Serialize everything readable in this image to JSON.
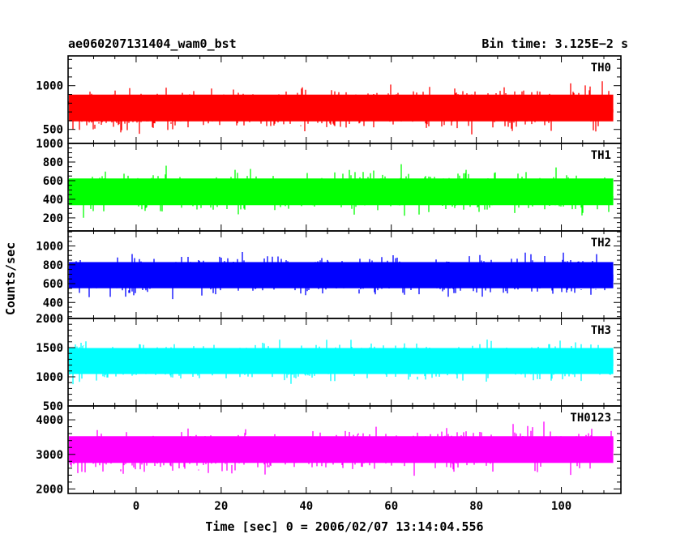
{
  "header": {
    "left_title": "ae060207131404_wam0_bst",
    "right_title": "Bin time: 3.125E−2 s"
  },
  "chart_data": {
    "type": "line",
    "title": "ae060207131404_wam0_bst",
    "subtitle": "Bin time: 3.125E−2 s",
    "xlabel": "Time [sec] 0 = 2006/02/07 13:14:04.556",
    "ylabel": "Counts/sec",
    "xlim": [
      -16,
      114
    ],
    "x_ticks": [
      0,
      20,
      40,
      60,
      80,
      100
    ],
    "x_tick_labels": [
      "0",
      "20",
      "40",
      "60",
      "80",
      "100"
    ],
    "data_x_range": [
      -15.8,
      112.2
    ],
    "grid": false,
    "panels": [
      {
        "name": "TH0",
        "color": "#ff0000",
        "ylim": [
          340,
          1340
        ],
        "ticks": [
          500,
          1000
        ],
        "tick_labels": [
          "500",
          "1000"
        ],
        "minor_step": 100,
        "mean": 720,
        "low": 330,
        "high": 1330,
        "mean_trend": [
          [
            -16,
            690
          ],
          [
            40,
            730
          ],
          [
            60,
            760
          ],
          [
            90,
            750
          ],
          [
            114,
            740
          ]
        ]
      },
      {
        "name": "TH1",
        "color": "#00ff00",
        "ylim": [
          60,
          1000
        ],
        "ticks": [
          200,
          400,
          600,
          800,
          1000
        ],
        "tick_labels": [
          "200",
          "400",
          "600",
          "800",
          "1000"
        ],
        "minor_step": 50,
        "mean": 480,
        "low": 60,
        "high": 1000,
        "mean_trend": [
          [
            -16,
            480
          ],
          [
            114,
            480
          ]
        ]
      },
      {
        "name": "TH2",
        "color": "#0000ff",
        "ylim": [
          230,
          1160
        ],
        "ticks": [
          400,
          600,
          800,
          1000
        ],
        "tick_labels": [
          "400",
          "600",
          "800",
          "1000"
        ],
        "minor_step": 50,
        "mean": 690,
        "low": 250,
        "high": 1160,
        "mean_trend": [
          [
            -16,
            690
          ],
          [
            114,
            690
          ]
        ]
      },
      {
        "name": "TH3",
        "color": "#00ffff",
        "ylim": [
          500,
          2000
        ],
        "ticks": [
          500,
          1000,
          1500,
          2000
        ],
        "tick_labels": [
          "500",
          "1000",
          "1500",
          "2000"
        ],
        "minor_step": 100,
        "mean": 1270,
        "low": 540,
        "high": 2000,
        "mean_trend": [
          [
            -16,
            1260
          ],
          [
            114,
            1280
          ]
        ]
      },
      {
        "name": "TH0123",
        "color": "#ff00ff",
        "ylim": [
          1870,
          4400
        ],
        "ticks": [
          2000,
          3000,
          4000
        ],
        "tick_labels": [
          "2000",
          "3000",
          "4000"
        ],
        "minor_step": 200,
        "mean": 3100,
        "low": 1870,
        "high": 4400,
        "mean_trend": [
          [
            -16,
            3020
          ],
          [
            40,
            3120
          ],
          [
            70,
            3180
          ],
          [
            114,
            3150
          ]
        ]
      }
    ]
  }
}
